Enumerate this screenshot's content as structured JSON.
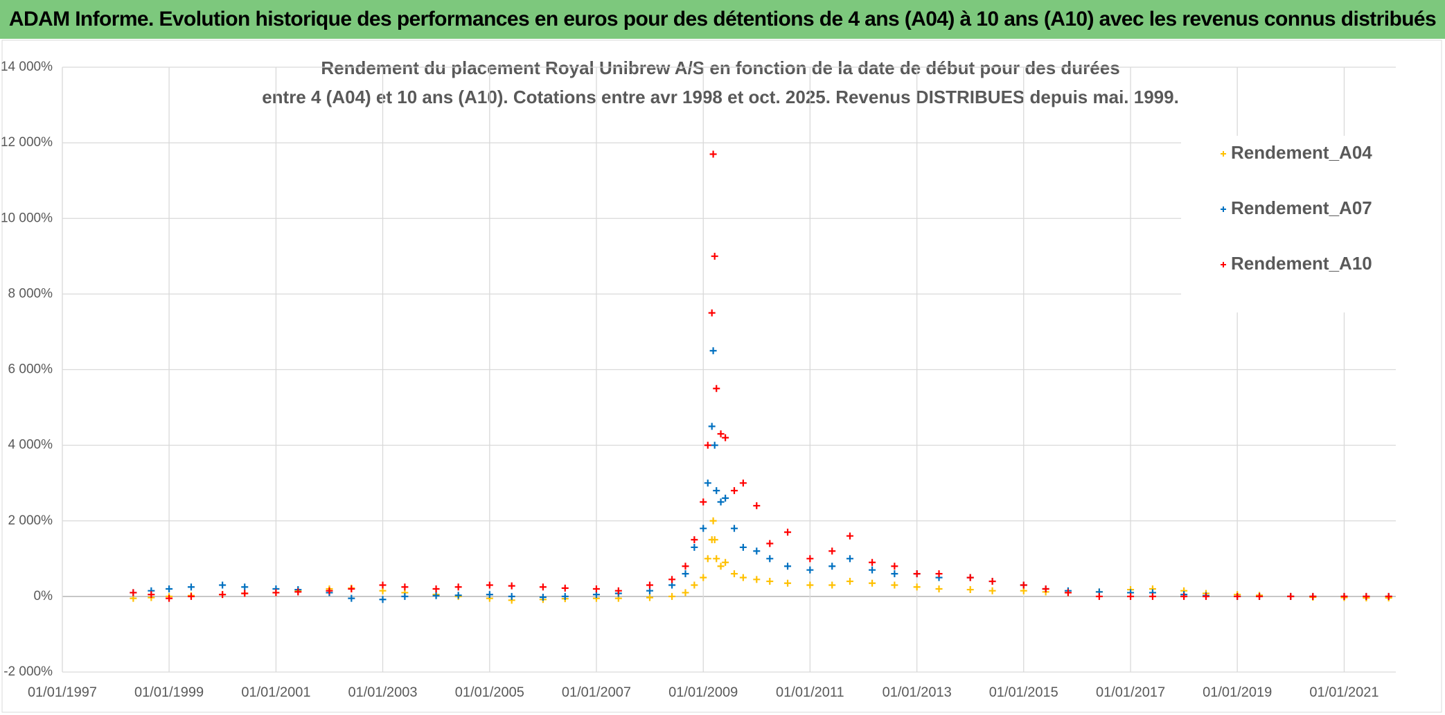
{
  "header": {
    "title": "ADAM Informe. Evolution historique des performances en euros pour des détentions de 4 ans (A04) à 10 ans (A10) avec les revenus connus distribués"
  },
  "chart_data": {
    "type": "scatter",
    "title": "Rendement du placement Royal Unibrew A/S en fonction de la date de début pour des durées",
    "subtitle": "entre 4 (A04) et 10 ans (A10). Cotations entre avr 1998 et oct. 2025. Revenus DISTRIBUES depuis mai. 1999.",
    "x": [
      "1998-05-01",
      "1998-09-01",
      "1999-01-01",
      "1999-06-01",
      "2000-01-01",
      "2000-06-01",
      "2001-01-01",
      "2001-06-01",
      "2002-01-01",
      "2002-06-01",
      "2003-01-01",
      "2003-06-01",
      "2004-01-01",
      "2004-06-01",
      "2005-01-01",
      "2005-06-01",
      "2006-01-01",
      "2006-06-01",
      "2007-01-01",
      "2007-06-01",
      "2008-01-01",
      "2008-06-01",
      "2008-09-01",
      "2008-11-01",
      "2009-01-01",
      "2009-02-01",
      "2009-03-01",
      "2009-03-10",
      "2009-03-20",
      "2009-04-01",
      "2009-05-01",
      "2009-06-01",
      "2009-08-01",
      "2009-10-01",
      "2010-01-01",
      "2010-04-01",
      "2010-08-01",
      "2011-01-01",
      "2011-06-01",
      "2011-10-01",
      "2012-03-01",
      "2012-08-01",
      "2013-01-01",
      "2013-06-01",
      "2014-01-01",
      "2014-06-01",
      "2015-01-01",
      "2015-06-01",
      "2015-11-01",
      "2016-06-01",
      "2017-01-01",
      "2017-06-01",
      "2018-01-01",
      "2018-06-01",
      "2019-01-01",
      "2019-06-01",
      "2020-01-01",
      "2020-06-01",
      "2021-01-01",
      "2021-06-01",
      "2021-11-01"
    ],
    "series": [
      {
        "name": "Rendement_A04",
        "color": "#ffc000",
        "values": [
          -50,
          -30,
          0,
          20,
          50,
          80,
          100,
          150,
          200,
          220,
          150,
          100,
          50,
          0,
          -50,
          -100,
          -80,
          -60,
          -50,
          -50,
          -30,
          0,
          100,
          300,
          500,
          1000,
          1500,
          2000,
          1500,
          1000,
          800,
          900,
          600,
          500,
          450,
          400,
          350,
          300,
          300,
          400,
          350,
          300,
          250,
          200,
          180,
          150,
          150,
          120,
          100,
          120,
          180,
          200,
          150,
          80,
          50,
          30,
          0,
          -20,
          -30,
          -40,
          -40
        ]
      },
      {
        "name": "Rendement_A07",
        "color": "#0070c0",
        "values": [
          100,
          150,
          200,
          250,
          300,
          250,
          200,
          180,
          100,
          -50,
          -80,
          0,
          20,
          30,
          50,
          0,
          -20,
          0,
          50,
          80,
          150,
          300,
          600,
          1300,
          1800,
          3000,
          4500,
          6500,
          4000,
          2800,
          2500,
          2600,
          1800,
          1300,
          1200,
          1000,
          800,
          700,
          800,
          1000,
          700,
          600,
          600,
          500,
          500,
          400,
          300,
          200,
          150,
          120,
          100,
          100,
          50,
          20,
          0,
          0,
          0,
          0,
          0,
          0,
          0
        ]
      },
      {
        "name": "Rendement_A10",
        "color": "#ff0000",
        "values": [
          100,
          50,
          -50,
          0,
          50,
          80,
          100,
          120,
          150,
          200,
          300,
          250,
          200,
          250,
          300,
          280,
          250,
          220,
          200,
          150,
          300,
          450,
          800,
          1500,
          2500,
          4000,
          7500,
          11700,
          9000,
          5500,
          4300,
          4200,
          2800,
          3000,
          2400,
          1400,
          1700,
          1000,
          1200,
          1600,
          900,
          800,
          600,
          600,
          500,
          400,
          300,
          200,
          100,
          0,
          0,
          0,
          0,
          0,
          0,
          0,
          0,
          0,
          0,
          0,
          0
        ]
      }
    ],
    "xlim": [
      "1997-01-01",
      "2021-12-20"
    ],
    "xticks": [
      {
        "value": "1997-01-01",
        "label": "01/01/1997"
      },
      {
        "value": "1999-01-01",
        "label": "01/01/1999"
      },
      {
        "value": "2001-01-01",
        "label": "01/01/2001"
      },
      {
        "value": "2003-01-01",
        "label": "01/01/2003"
      },
      {
        "value": "2005-01-01",
        "label": "01/01/2005"
      },
      {
        "value": "2007-01-01",
        "label": "01/01/2007"
      },
      {
        "value": "2009-01-01",
        "label": "01/01/2009"
      },
      {
        "value": "2011-01-01",
        "label": "01/01/2011"
      },
      {
        "value": "2013-01-01",
        "label": "01/01/2013"
      },
      {
        "value": "2015-01-01",
        "label": "01/01/2015"
      },
      {
        "value": "2017-01-01",
        "label": "01/01/2017"
      },
      {
        "value": "2019-01-01",
        "label": "01/01/2019"
      },
      {
        "value": "2021-01-01",
        "label": "01/01/2021"
      }
    ],
    "ylim": [
      -2000,
      14000
    ],
    "yticks": [
      {
        "value": -2000,
        "label": "-2 000%"
      },
      {
        "value": 0,
        "label": "0%"
      },
      {
        "value": 2000,
        "label": "2 000%"
      },
      {
        "value": 4000,
        "label": "4 000%"
      },
      {
        "value": 6000,
        "label": "6 000%"
      },
      {
        "value": 8000,
        "label": "8 000%"
      },
      {
        "value": 10000,
        "label": "10 000%"
      },
      {
        "value": 12000,
        "label": "12 000%"
      },
      {
        "value": 14000,
        "label": "14 000%"
      }
    ],
    "grid": true,
    "legend": "upper right"
  }
}
